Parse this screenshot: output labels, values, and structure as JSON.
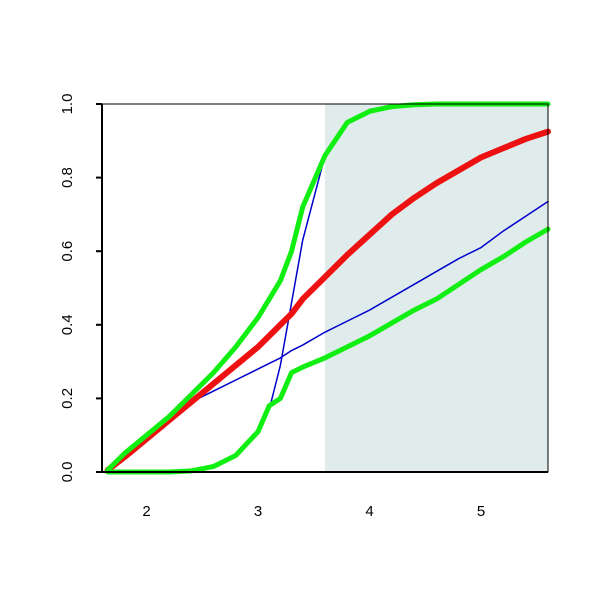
{
  "chart_data": {
    "type": "line",
    "x": [
      1.65,
      1.8,
      2.0,
      2.2,
      2.4,
      2.6,
      2.8,
      3.0,
      3.1,
      3.2,
      3.3,
      3.4,
      3.6,
      3.8,
      4.0,
      4.2,
      4.4,
      4.6,
      4.8,
      5.0,
      5.2,
      5.4,
      5.6
    ],
    "series": [
      {
        "color": "#0000cc",
        "width": 1.5,
        "values": [
          0,
          0,
          0,
          0,
          0.003,
          0.015,
          0.045,
          0.11,
          0.17,
          0.29,
          0.46,
          0.63,
          0.86,
          0.95,
          0.985,
          0.996,
          1,
          1,
          1,
          1,
          1,
          1,
          1
        ]
      },
      {
        "color": "#0000cc",
        "width": 1.5,
        "values": [
          0.005,
          0.04,
          0.1,
          0.15,
          0.19,
          0.22,
          0.25,
          0.28,
          0.295,
          0.31,
          0.33,
          0.345,
          0.38,
          0.41,
          0.44,
          0.475,
          0.51,
          0.545,
          0.58,
          0.61,
          0.655,
          0.695,
          0.735
        ]
      },
      {
        "color": "#ee1111",
        "width": 6,
        "values": [
          0.005,
          0.04,
          0.09,
          0.14,
          0.19,
          0.24,
          0.29,
          0.34,
          0.37,
          0.4,
          0.43,
          0.47,
          0.53,
          0.59,
          0.645,
          0.7,
          0.745,
          0.785,
          0.82,
          0.855,
          0.88,
          0.905,
          0.925
        ]
      },
      {
        "color": "#11ee11",
        "width": 5,
        "values": [
          0.005,
          0.05,
          0.1,
          0.15,
          0.21,
          0.27,
          0.34,
          0.42,
          0.47,
          0.52,
          0.6,
          0.72,
          0.86,
          0.95,
          0.98,
          0.993,
          0.998,
          1,
          1,
          1,
          1,
          1,
          1
        ]
      },
      {
        "color": "#11ee11",
        "width": 5,
        "values": [
          0,
          0,
          0,
          0,
          0.003,
          0.015,
          0.045,
          0.11,
          0.18,
          0.2,
          0.27,
          0.285,
          0.31,
          0.34,
          0.37,
          0.405,
          0.44,
          0.47,
          0.51,
          0.55,
          0.585,
          0.625,
          0.66
        ]
      }
    ],
    "shade": {
      "xlim": [
        3.6,
        5.6
      ],
      "color": "#e0ecec"
    },
    "xlim": [
      1.6,
      5.6
    ],
    "xticks": [
      2,
      3,
      4,
      5
    ],
    "ylim": [
      0,
      1
    ],
    "yticks": [
      {
        "value": 0,
        "label": "0.0"
      },
      {
        "value": 0.2,
        "label": "0.2"
      },
      {
        "value": 0.4,
        "label": "0.4"
      },
      {
        "value": 0.6,
        "label": "0.6"
      },
      {
        "value": 0.8,
        "label": "0.8"
      },
      {
        "value": 1,
        "label": "1.0"
      }
    ]
  }
}
